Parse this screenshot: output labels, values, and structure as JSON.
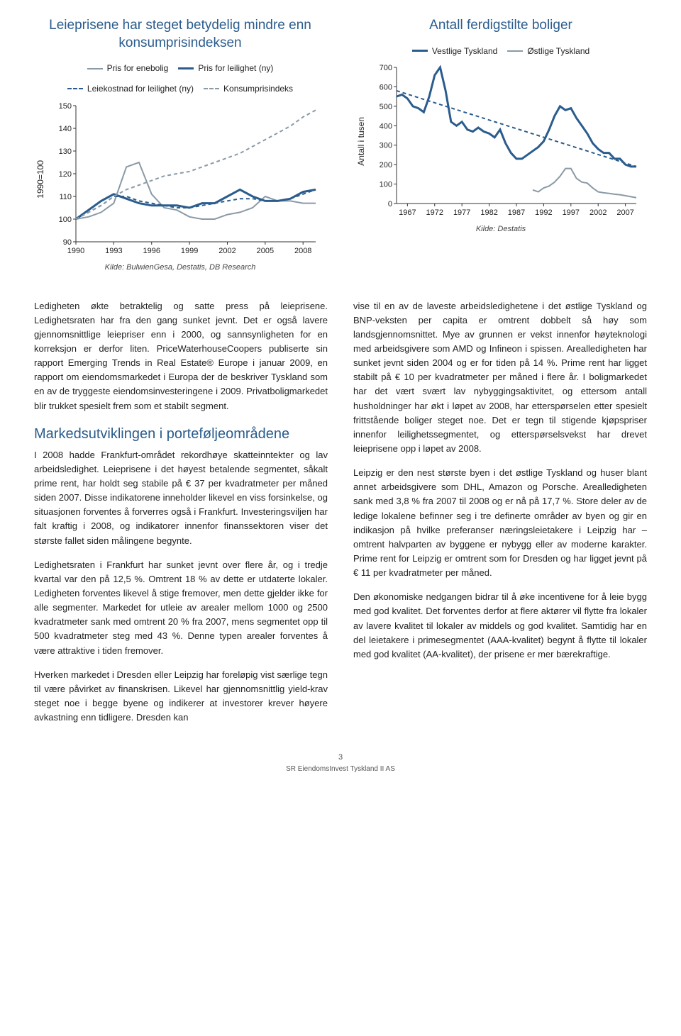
{
  "colors": {
    "accent": "#2a5c8d",
    "text": "#222222",
    "axis": "#333333",
    "bg": "#ffffff"
  },
  "chart1": {
    "type": "line",
    "title": "Leieprisene har steget betydelig mindre enn konsumprisindeksen",
    "y_axis_label": "1990=100",
    "xlim": [
      1990,
      2009
    ],
    "ylim": [
      90,
      150
    ],
    "xtick_step": 3,
    "ytick_step": 10,
    "xticks": [
      1990,
      1993,
      1996,
      1999,
      2002,
      2005,
      2008
    ],
    "yticks": [
      90,
      100,
      110,
      120,
      130,
      140,
      150
    ],
    "axis_color": "#333333",
    "label_fontsize": 11,
    "series": [
      {
        "name": "Pris for enebolig",
        "color": "#8a9aa6",
        "width": 2,
        "dash": "none",
        "x": [
          1990,
          1991,
          1992,
          1993,
          1994,
          1995,
          1996,
          1997,
          1998,
          1999,
          2000,
          2001,
          2002,
          2003,
          2004,
          2005,
          2006,
          2007,
          2008,
          2009
        ],
        "y": [
          100,
          101,
          103,
          107,
          123,
          125,
          111,
          105,
          104,
          101,
          100,
          100,
          102,
          103,
          105,
          110,
          108,
          108,
          107,
          107
        ]
      },
      {
        "name": "Pris for leilighet (ny)",
        "color": "#2a5c8d",
        "width": 3,
        "dash": "none",
        "x": [
          1990,
          1991,
          1992,
          1993,
          1994,
          1995,
          1996,
          1997,
          1998,
          1999,
          2000,
          2001,
          2002,
          2003,
          2004,
          2005,
          2006,
          2007,
          2008,
          2009
        ],
        "y": [
          100,
          104,
          108,
          111,
          109,
          107,
          106,
          106,
          106,
          105,
          107,
          107,
          110,
          113,
          110,
          108,
          108,
          109,
          112,
          113
        ]
      },
      {
        "name": "Leiekostnad for leilighet (ny)",
        "color": "#2a5c8d",
        "width": 2,
        "dash": "5,4",
        "x": [
          1990,
          1991,
          1992,
          1993,
          1994,
          1995,
          1996,
          1997,
          1998,
          1999,
          2000,
          2001,
          2002,
          2003,
          2004,
          2005,
          2006,
          2007,
          2008,
          2009
        ],
        "y": [
          100,
          103,
          106,
          110,
          110,
          108,
          107,
          106,
          105,
          105,
          106,
          107,
          108,
          109,
          109,
          108,
          108,
          109,
          111,
          113
        ]
      },
      {
        "name": "Konsumprisindeks",
        "color": "#8a9aa6",
        "width": 2,
        "dash": "5,4",
        "x": [
          1990,
          1991,
          1992,
          1993,
          1994,
          1995,
          1996,
          1997,
          1998,
          1999,
          2000,
          2001,
          2002,
          2003,
          2004,
          2005,
          2006,
          2007,
          2008,
          2009
        ],
        "y": [
          100,
          103,
          106,
          110,
          113,
          115,
          117,
          119,
          120,
          121,
          123,
          125,
          127,
          129,
          132,
          135,
          138,
          141,
          145,
          148
        ]
      }
    ],
    "source": "Kilde: BulwienGesa, Destatis, DB Research"
  },
  "chart2": {
    "type": "line",
    "title": "Antall ferdigstilte boliger",
    "y_axis_label": "Antall i tusen",
    "xlim": [
      1965,
      2009
    ],
    "ylim": [
      0,
      700
    ],
    "xtick_step": 5,
    "ytick_step": 100,
    "xticks": [
      1967,
      1972,
      1977,
      1982,
      1987,
      1992,
      1997,
      2002,
      2007
    ],
    "yticks": [
      0,
      100,
      200,
      300,
      400,
      500,
      600,
      700
    ],
    "axis_color": "#333333",
    "label_fontsize": 11,
    "series": [
      {
        "name": "Vestlige Tyskland",
        "color": "#2a5c8d",
        "width": 3,
        "dash": "none",
        "x": [
          1965,
          1966,
          1967,
          1968,
          1969,
          1970,
          1971,
          1972,
          1973,
          1974,
          1975,
          1976,
          1977,
          1978,
          1979,
          1980,
          1981,
          1982,
          1983,
          1984,
          1985,
          1986,
          1987,
          1988,
          1989,
          1990,
          1991,
          1992,
          1993,
          1994,
          1995,
          1996,
          1997,
          1998,
          1999,
          2000,
          2001,
          2002,
          2003,
          2004,
          2005,
          2006,
          2007,
          2008,
          2009
        ],
        "y": [
          550,
          560,
          540,
          500,
          490,
          470,
          550,
          660,
          700,
          580,
          420,
          400,
          420,
          380,
          370,
          390,
          370,
          360,
          340,
          380,
          310,
          260,
          230,
          230,
          250,
          270,
          290,
          320,
          380,
          450,
          500,
          480,
          490,
          440,
          400,
          360,
          310,
          280,
          260,
          260,
          230,
          230,
          200,
          190,
          190
        ]
      },
      {
        "name": "Østlige Tyskland",
        "color": "#8a9aa6",
        "width": 2,
        "dash": "none",
        "x": [
          1990,
          1991,
          1992,
          1993,
          1994,
          1995,
          1996,
          1997,
          1998,
          1999,
          2000,
          2001,
          2002,
          2003,
          2004,
          2005,
          2006,
          2007,
          2008,
          2009
        ],
        "y": [
          70,
          60,
          80,
          90,
          110,
          140,
          180,
          180,
          130,
          110,
          105,
          80,
          60,
          55,
          52,
          48,
          45,
          40,
          35,
          30
        ]
      },
      {
        "name": "trend",
        "hide_legend": true,
        "color": "#2a5c8d",
        "width": 2,
        "dash": "5,4",
        "x": [
          1965,
          2009
        ],
        "y": [
          580,
          190
        ]
      }
    ],
    "source": "Kilde: Destatis"
  },
  "body": {
    "left": [
      "Ledigheten økte betraktelig og satte press på leieprisene. Ledighetsraten har fra den gang sunket jevnt. Det er også lavere gjennomsnittlige leiepriser enn i 2000, og sannsynligheten for en korreksjon er derfor liten. PriceWaterhouseCoopers publiserte sin rapport Emerging Trends in Real Estate® Europe i januar 2009, en rapport om eiendomsmarkedet i Europa der de beskriver Tyskland som en av de tryggeste eiendomsinvesteringene i 2009. Privatboligmarkedet blir trukket spesielt frem som et stabilt segment."
    ],
    "heading": "Markedsutviklingen i porteføljeområdene",
    "left2": [
      "I 2008 hadde Frankfurt-området rekordhøye skatteinntekter og lav arbeidsledighet. Leieprisene i det høyest betalende segmentet, såkalt prime rent, har holdt seg stabile på € 37 per kvadratmeter per måned siden 2007. Disse indikatorene inneholder likevel en viss forsinkelse, og situasjonen forventes å forverres også i Frankfurt. Investeringsviljen har falt kraftig i 2008, og indikatorer innenfor finanssektoren viser det største fallet siden målingene begynte.",
      "Ledighetsraten i Frankfurt har sunket jevnt over flere år, og i tredje kvartal var den på 12,5 %. Omtrent 18 % av dette er utdaterte lokaler. Ledigheten forventes likevel å stige fremover, men dette gjelder ikke for alle segmenter. Markedet for utleie av arealer mellom 1000 og 2500 kvadratmeter sank med omtrent 20 % fra 2007, mens segmentet opp til 500 kvadratmeter steg med 43 %. Denne typen arealer forventes å være attraktive i tiden fremover.",
      "Hverken markedet i Dresden eller Leipzig har foreløpig vist særlige tegn til være påvirket av finanskrisen. Likevel har gjennomsnittlig yield-krav steget noe i begge byene og indikerer at investorer krever høyere avkastning enn tidligere. Dresden kan"
    ],
    "right": [
      "vise til en av de laveste arbeidsledighetene i det østlige Tyskland og BNP-veksten per capita er omtrent dobbelt så høy som landsgjennomsnittet. Mye av grunnen er vekst innenfor høyteknologi med arbeidsgivere som AMD og Infineon i spissen. Arealledigheten har sunket jevnt siden 2004 og er for tiden på 14 %. Prime rent har ligget stabilt på € 10 per kvadratmeter per måned i flere år. I boligmarkedet har det vært svært lav nybyggingsaktivitet, og ettersom antall husholdninger har økt i løpet av 2008, har etterspørselen etter spesielt frittstående boliger steget noe. Det er tegn til stigende kjøpspriser innenfor leilighetssegmentet, og etterspørselsvekst har drevet leieprisene opp i løpet av 2008.",
      "Leipzig er den nest største byen i det østlige Tyskland og huser blant annet arbeidsgivere som DHL, Amazon og Porsche. Arealledigheten sank med 3,8 % fra 2007 til 2008 og er nå på 17,7 %. Store deler av de ledige lokalene befinner seg i tre definerte områder av byen og gir en indikasjon på hvilke preferanser næringsleietakere i Leipzig har – omtrent halvparten av byggene er nybygg eller av moderne karakter. Prime rent for Leipzig er omtrent som for Dresden og har ligget jevnt på € 11 per kvadratmeter per måned.",
      "Den økonomiske nedgangen bidrar til å øke incentivene for å leie bygg med god kvalitet. Det forventes derfor at flere aktører vil flytte fra lokaler av lavere kvalitet til lokaler av middels og god kvalitet. Samtidig har en del leietakere i primesegmentet (AAA-kvalitet) begynt å flytte til lokaler med god kvalitet (AA-kvalitet), der prisene er mer bærekraftige."
    ]
  },
  "footer": {
    "page": "3",
    "company": "SR EiendomsInvest Tyskland II AS"
  }
}
